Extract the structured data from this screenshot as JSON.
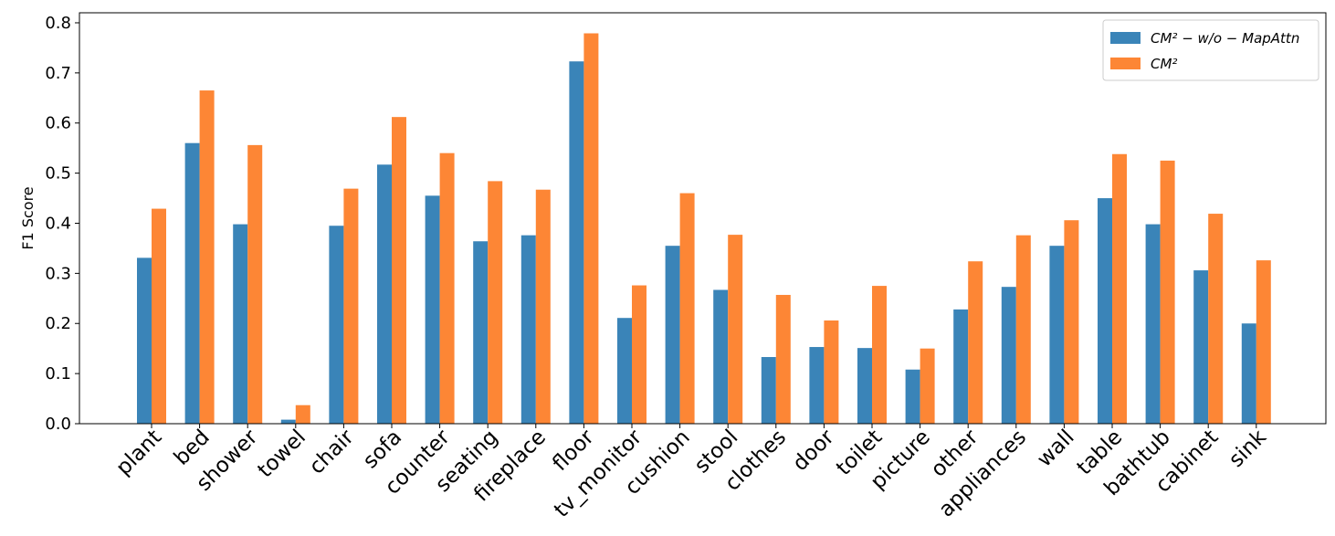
{
  "chart_data": {
    "type": "bar",
    "ylabel": "F1 Score",
    "ylim": [
      0,
      0.82
    ],
    "yticks": [
      "0.0",
      "0.1",
      "0.2",
      "0.3",
      "0.4",
      "0.5",
      "0.6",
      "0.7",
      "0.8"
    ],
    "categories": [
      "plant",
      "bed",
      "shower",
      "towel",
      "chair",
      "sofa",
      "counter",
      "seating",
      "fireplace",
      "floor",
      "tv_monitor",
      "cushion",
      "stool",
      "clothes",
      "door",
      "toilet",
      "picture",
      "other",
      "appliances",
      "wall",
      "table",
      "bathtub",
      "cabinet",
      "sink"
    ],
    "series": [
      {
        "name": "CM² − w/o − MapAttn",
        "color": "#3a84b8",
        "values": [
          0.331,
          0.56,
          0.398,
          0.008,
          0.395,
          0.517,
          0.455,
          0.364,
          0.376,
          0.723,
          0.211,
          0.355,
          0.267,
          0.133,
          0.153,
          0.151,
          0.108,
          0.228,
          0.273,
          0.355,
          0.45,
          0.398,
          0.306,
          0.2
        ]
      },
      {
        "name": "CM²",
        "color": "#fd8635",
        "values": [
          0.429,
          0.665,
          0.556,
          0.037,
          0.469,
          0.612,
          0.54,
          0.484,
          0.467,
          0.779,
          0.276,
          0.46,
          0.377,
          0.257,
          0.206,
          0.275,
          0.15,
          0.324,
          0.376,
          0.406,
          0.538,
          0.525,
          0.419,
          0.326
        ]
      }
    ],
    "legend": {
      "position": "top-right"
    },
    "grid": false
  }
}
